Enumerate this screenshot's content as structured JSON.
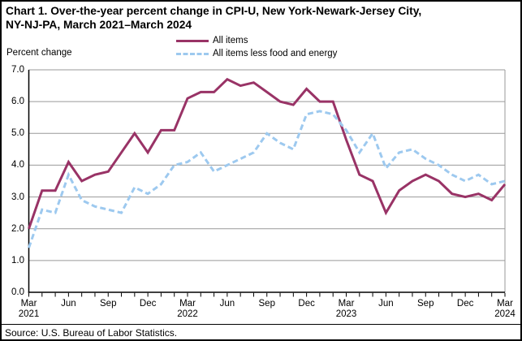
{
  "title": {
    "line1": "Chart 1. Over-the-year percent change in CPI-U, New York-Newark-Jersey City,",
    "line2": "NY-NJ-PA, March 2021–March 2024"
  },
  "y_axis_label": "Percent change",
  "source": "Source: U.S. Bureau of Labor Statistics.",
  "chart_data": {
    "type": "line",
    "title": "Chart 1. Over-the-year percent change in CPI-U, New York-Newark-Jersey City, NY-NJ-PA, March 2021–March 2024",
    "ylabel": "Percent change",
    "ylim": [
      0,
      7
    ],
    "grid": true,
    "legend_position": "top-center",
    "colors": {
      "grid": "#999999",
      "axis": "#000000",
      "plot_right_border": "#999999"
    },
    "x": [
      "Mar 2021",
      "Apr 2021",
      "May 2021",
      "Jun 2021",
      "Jul 2021",
      "Aug 2021",
      "Sep 2021",
      "Oct 2021",
      "Nov 2021",
      "Dec 2021",
      "Jan 2022",
      "Feb 2022",
      "Mar 2022",
      "Apr 2022",
      "May 2022",
      "Jun 2022",
      "Jul 2022",
      "Aug 2022",
      "Sep 2022",
      "Oct 2022",
      "Nov 2022",
      "Dec 2022",
      "Jan 2023",
      "Feb 2023",
      "Mar 2023",
      "Apr 2023",
      "May 2023",
      "Jun 2023",
      "Jul 2023",
      "Aug 2023",
      "Sep 2023",
      "Oct 2023",
      "Nov 2023",
      "Dec 2023",
      "Jan 2024",
      "Feb 2024",
      "Mar 2024"
    ],
    "y_ticks": [
      "0.0",
      "1.0",
      "2.0",
      "3.0",
      "4.0",
      "5.0",
      "6.0",
      "7.0"
    ],
    "x_ticks": [
      {
        "i": 0,
        "m": "Mar",
        "y": "2021"
      },
      {
        "i": 3,
        "m": "Jun"
      },
      {
        "i": 6,
        "m": "Sep"
      },
      {
        "i": 9,
        "m": "Dec"
      },
      {
        "i": 12,
        "m": "Mar",
        "y": "2022"
      },
      {
        "i": 15,
        "m": "Jun"
      },
      {
        "i": 18,
        "m": "Sep"
      },
      {
        "i": 21,
        "m": "Dec"
      },
      {
        "i": 24,
        "m": "Mar",
        "y": "2023"
      },
      {
        "i": 27,
        "m": "Jun"
      },
      {
        "i": 30,
        "m": "Sep"
      },
      {
        "i": 33,
        "m": "Dec"
      },
      {
        "i": 36,
        "m": "Mar",
        "y": "2024"
      }
    ],
    "series": [
      {
        "name": "All items",
        "color": "#993366",
        "dashed": false,
        "values": [
          2.0,
          3.2,
          3.2,
          4.1,
          3.5,
          3.7,
          3.8,
          4.4,
          5.0,
          4.4,
          5.1,
          5.1,
          6.1,
          6.3,
          6.3,
          6.7,
          6.5,
          6.6,
          6.3,
          6.0,
          5.9,
          6.4,
          6.0,
          6.0,
          4.8,
          3.7,
          3.5,
          2.5,
          3.2,
          3.5,
          3.7,
          3.5,
          3.1,
          3.0,
          3.1,
          2.9,
          3.4
        ]
      },
      {
        "name": "All items less food and energy",
        "color": "#9DC9EF",
        "dashed": true,
        "values": [
          1.4,
          2.6,
          2.5,
          3.7,
          2.9,
          2.7,
          2.6,
          2.5,
          3.3,
          3.1,
          3.4,
          4.0,
          4.1,
          4.4,
          3.8,
          4.0,
          4.2,
          4.4,
          5.0,
          4.7,
          4.5,
          5.6,
          5.7,
          5.6,
          5.1,
          4.4,
          5.0,
          3.9,
          4.4,
          4.5,
          4.2,
          4.0,
          3.7,
          3.5,
          3.7,
          3.4,
          3.5
        ]
      }
    ]
  }
}
